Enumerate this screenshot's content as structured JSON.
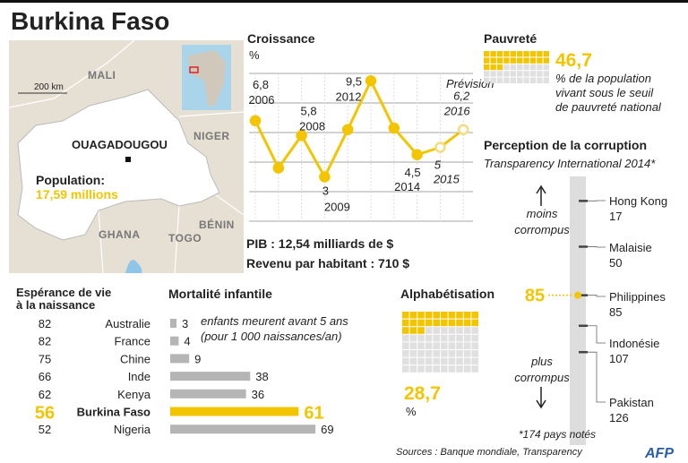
{
  "title": "Burkina Faso",
  "map": {
    "labels": [
      "MALI",
      "NIGER",
      "BÉNIN",
      "TOGO",
      "GHANA"
    ],
    "capital": "OUAGADOUGOU",
    "scale": "200 km",
    "population_label": "Population:",
    "population_value": "17,59 millions"
  },
  "economy": {
    "gdp": "PIB : 12,54 milliards de $",
    "income": "Revenu par habitant : 710 $"
  },
  "sources": "Sources : Banque mondiale, Transparency",
  "logo": "AFP",
  "chart_data": [
    {
      "type": "line",
      "title": "Croissance",
      "y_label": "%",
      "categories": [
        "2006",
        null,
        "2008",
        "2009",
        null,
        "2012",
        null,
        "2014",
        "2015",
        "2016"
      ],
      "values": [
        6.8,
        3.6,
        5.8,
        3,
        6.2,
        9.5,
        6.3,
        4.5,
        5,
        6.2
      ],
      "value_labels": [
        "6,8",
        null,
        "5,8",
        "3",
        null,
        "9,5",
        null,
        "4,5",
        "5",
        "6,2"
      ],
      "forecast": [
        false,
        false,
        false,
        false,
        false,
        false,
        false,
        false,
        true,
        true
      ],
      "annotation": "Prévision",
      "ylim": [
        0,
        10
      ],
      "color": "#f2c500"
    },
    {
      "type": "waffle",
      "title": "Pauvreté",
      "value": 46.7,
      "value_label": "46,7",
      "description": [
        "% de la population",
        "vivant sous le seuil",
        "de pauvreté national"
      ],
      "color": "#f2c500"
    },
    {
      "type": "waffle",
      "title": "Alphabétisation",
      "value": 28.7,
      "value_label": "28,7",
      "unit": "%",
      "color": "#f2c500"
    },
    {
      "type": "table",
      "title": [
        "Espérance de vie",
        "à la naissance"
      ],
      "categories": [
        "Australie",
        "France",
        "Chine",
        "Inde",
        "Kenya",
        "Burkina Faso",
        "Nigeria"
      ],
      "values": [
        82,
        82,
        75,
        66,
        62,
        56,
        52
      ],
      "highlight": 5,
      "highlight_color": "#f2c500"
    },
    {
      "type": "bar",
      "orientation": "horizontal",
      "title": "Mortalité infantile",
      "note": [
        "enfants meurent avant 5 ans",
        "(pour 1 000 naissances/an)"
      ],
      "values": [
        3,
        4,
        9,
        38,
        36,
        61,
        69
      ],
      "xlim": [
        0,
        70
      ],
      "color": "#b5b5b5",
      "highlight": 5,
      "highlight_color": "#f2c500"
    },
    {
      "type": "rank",
      "title": "Perception de la corruption",
      "subtitle": "Transparency International 2014*",
      "categories": [
        "Hong Kong",
        "Malaisie",
        "Philippines",
        "Indonésie",
        "Pakistan"
      ],
      "values": [
        17,
        50,
        85,
        107,
        126
      ],
      "highlight_value": 85,
      "top_label": [
        "moins",
        "corrompus"
      ],
      "bottom_label": [
        "plus",
        "corrompus"
      ],
      "note": "*174 pays notés",
      "ylim": [
        0,
        193
      ],
      "color": "#f2c500"
    }
  ]
}
